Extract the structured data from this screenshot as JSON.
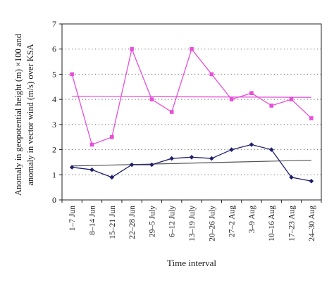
{
  "chart_data": {
    "type": "line",
    "title": "",
    "xlabel": "Time interval",
    "ylabel": "Anomaly in geopotential height (m) ×100  and anomaly in vector wind (m/s) over KSA",
    "ylim": [
      0,
      7
    ],
    "yticks": [
      "0",
      "1",
      "2",
      "3",
      "4",
      "5",
      "6",
      "7"
    ],
    "grid": "horizontal dotted",
    "legend": "none",
    "categories": [
      "1–7 Jun",
      "8–14 Jun",
      "15–21 Jun",
      "22–28 Jun",
      "29–5 July",
      "6–12 July",
      "13–19 July",
      "20–26 July",
      "27–2 Aug",
      "3–9 Aug",
      "10–16 Aug",
      "17–23 Aug",
      "24–30 Aug"
    ],
    "series": [
      {
        "color": "#e64fd8",
        "marker": "square",
        "values": [
          5.0,
          2.2,
          2.5,
          6.0,
          4.0,
          3.5,
          6.0,
          5.0,
          4.0,
          4.25,
          3.75,
          4.0,
          3.25
        ],
        "trend": [
          4.12,
          4.08
        ]
      },
      {
        "color": "#1f1f6e",
        "marker": "diamond",
        "values": [
          1.3,
          1.2,
          0.9,
          1.4,
          1.4,
          1.65,
          1.7,
          1.65,
          2.0,
          2.2,
          2.0,
          0.9,
          0.75
        ],
        "trend": [
          1.35,
          1.58
        ]
      }
    ],
    "trend_color": "#555555"
  }
}
